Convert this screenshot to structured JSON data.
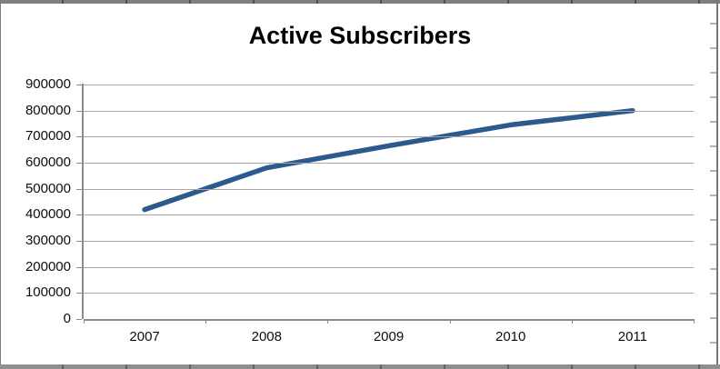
{
  "chart_data": {
    "type": "line",
    "title": "Active Subscribers",
    "categories": [
      "2007",
      "2008",
      "2009",
      "2010",
      "2011"
    ],
    "series": [
      {
        "name": "Active Subscribers",
        "values": [
          420000,
          580000,
          665000,
          745000,
          800000
        ]
      }
    ],
    "xlabel": "",
    "ylabel": "",
    "ylim": [
      0,
      900000
    ],
    "ytick_step": 100000,
    "ytick_labels": [
      "900000",
      "800000",
      "700000",
      "600000",
      "500000",
      "400000",
      "300000",
      "200000",
      "100000",
      "0"
    ],
    "grid": "horizontal",
    "legend_position": "none",
    "colors": {
      "line": "#2d5a8c",
      "gridline": "#a7a7a7",
      "axis": "#8a8a8a",
      "title_text": "#000000",
      "tick_text": "#0d0d0d",
      "background": "#ffffff"
    }
  }
}
